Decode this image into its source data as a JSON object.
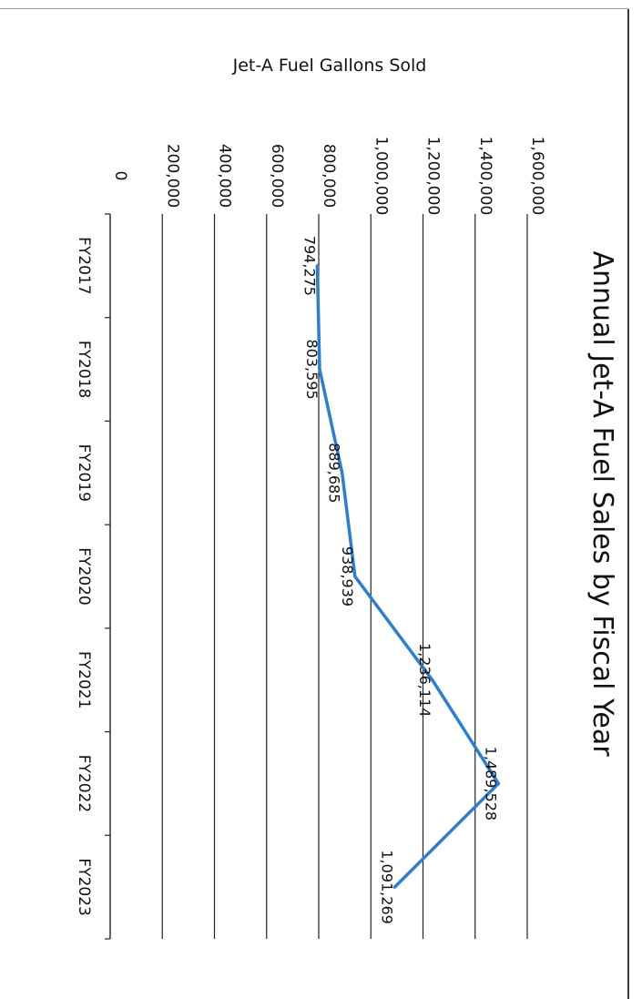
{
  "chart_data": {
    "type": "line",
    "title": "Annual Jet-A Fuel Sales by Fiscal Year",
    "ylabel": "Jet-A Fuel Gallons Sold",
    "xlabel": "",
    "categories": [
      "FY2017",
      "FY2018",
      "FY2019",
      "FY2020",
      "FY2021",
      "FY2022",
      "FY2023"
    ],
    "series": [
      {
        "values": [
          794275,
          803595,
          889685,
          938939,
          1236114,
          1489528,
          1091269
        ],
        "data_labels": [
          "794,275",
          "803,595",
          "889,685",
          "938,939",
          "1,236,114",
          "1,489,528",
          "1,091,269"
        ],
        "color": "#2a7fd4"
      }
    ],
    "ylim": [
      0,
      1600000
    ],
    "yticks": [
      0,
      200000,
      400000,
      600000,
      800000,
      1000000,
      1200000,
      1400000,
      1600000
    ],
    "ytick_labels": [
      "0",
      "200,000",
      "400,000",
      "600,000",
      "800,000",
      "1,000,000",
      "1,200,000",
      "1,400,000",
      "1,600,000"
    ],
    "grid": true,
    "orientation": "rotated-90-clockwise"
  }
}
